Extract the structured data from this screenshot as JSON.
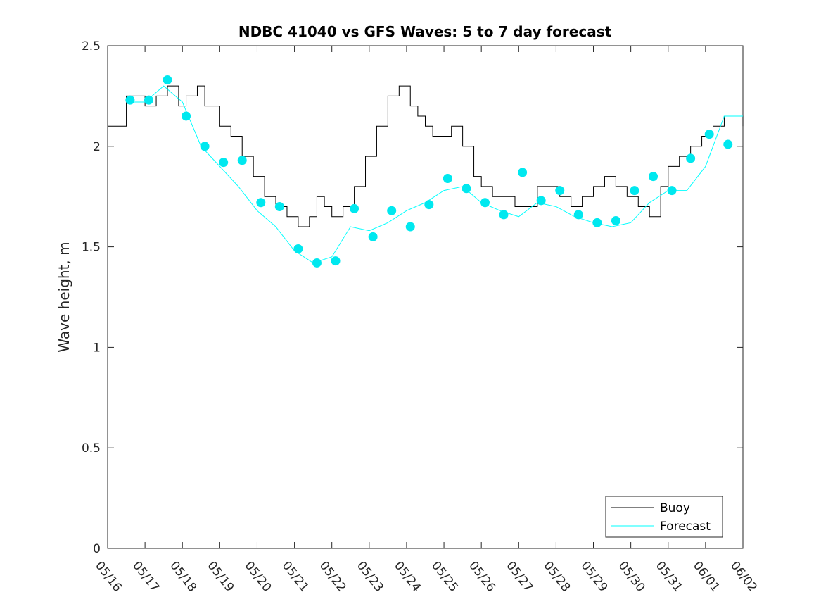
{
  "chart_data": {
    "type": "line",
    "title": "NDBC 41040 vs GFS Waves: 5 to 7 day forecast",
    "xlabel": "",
    "ylabel": "Wave height, m",
    "xlim": [
      "05/16",
      "06/02"
    ],
    "ylim": [
      0,
      2.5
    ],
    "x_ticks": [
      "05/16",
      "05/17",
      "05/18",
      "05/19",
      "05/20",
      "05/21",
      "05/22",
      "05/23",
      "05/24",
      "05/25",
      "05/26",
      "05/27",
      "05/28",
      "05/29",
      "05/30",
      "05/31",
      "06/01",
      "06/02"
    ],
    "y_ticks": [
      "0",
      "0.5",
      "1",
      "1.5",
      "2",
      "2.5"
    ],
    "grid": false,
    "legend": {
      "position": "bottom-right",
      "entries": [
        "Buoy",
        "Forecast"
      ]
    },
    "colors": {
      "buoy": "#000000",
      "forecast": "#00ffff",
      "markers": "#00e8ef"
    },
    "series": [
      {
        "name": "Buoy",
        "x": [
          0.0,
          0.5,
          1.0,
          1.3,
          1.6,
          1.9,
          2.1,
          2.4,
          2.6,
          3.0,
          3.3,
          3.6,
          3.9,
          4.2,
          4.5,
          4.8,
          5.1,
          5.4,
          5.6,
          5.8,
          6.0,
          6.3,
          6.6,
          6.9,
          7.2,
          7.5,
          7.8,
          8.1,
          8.3,
          8.5,
          8.7,
          9.0,
          9.2,
          9.5,
          9.8,
          10.0,
          10.3,
          10.6,
          10.9,
          11.2,
          11.5,
          11.8,
          12.1,
          12.4,
          12.7,
          13.0,
          13.3,
          13.6,
          13.9,
          14.2,
          14.5,
          14.8,
          15.0,
          15.3,
          15.6,
          15.9,
          16.2,
          16.5,
          17.0
        ],
        "values": [
          2.1,
          2.25,
          2.2,
          2.25,
          2.3,
          2.2,
          2.25,
          2.3,
          2.2,
          2.1,
          2.05,
          1.95,
          1.85,
          1.75,
          1.7,
          1.65,
          1.6,
          1.65,
          1.75,
          1.7,
          1.65,
          1.7,
          1.8,
          1.95,
          2.1,
          2.25,
          2.3,
          2.2,
          2.15,
          2.1,
          2.05,
          2.05,
          2.1,
          2.0,
          1.85,
          1.8,
          1.75,
          1.75,
          1.7,
          1.7,
          1.8,
          1.8,
          1.75,
          1.7,
          1.75,
          1.8,
          1.85,
          1.8,
          1.75,
          1.7,
          1.65,
          1.8,
          1.9,
          1.95,
          2.0,
          2.05,
          2.1,
          2.15,
          2.1
        ]
      },
      {
        "name": "Forecast",
        "x": [
          0.5,
          1.0,
          1.5,
          2.0,
          2.5,
          3.0,
          3.5,
          4.0,
          4.5,
          5.0,
          5.5,
          6.0,
          6.5,
          7.0,
          7.5,
          8.0,
          8.5,
          9.0,
          9.5,
          10.0,
          10.5,
          11.0,
          11.5,
          12.0,
          12.5,
          13.0,
          13.5,
          14.0,
          14.5,
          15.0,
          15.5,
          16.0,
          16.5,
          17.0
        ],
        "values": [
          2.22,
          2.22,
          2.3,
          2.22,
          2.0,
          1.9,
          1.8,
          1.68,
          1.6,
          1.48,
          1.42,
          1.45,
          1.6,
          1.58,
          1.62,
          1.68,
          1.72,
          1.78,
          1.8,
          1.72,
          1.68,
          1.65,
          1.72,
          1.7,
          1.65,
          1.62,
          1.6,
          1.62,
          1.72,
          1.78,
          1.78,
          1.9,
          2.15,
          2.15
        ]
      }
    ],
    "markers": {
      "x": [
        0.6,
        1.1,
        1.6,
        2.1,
        2.6,
        3.1,
        3.6,
        4.1,
        4.6,
        5.1,
        5.6,
        6.1,
        6.6,
        7.1,
        7.6,
        8.1,
        8.6,
        9.1,
        9.6,
        10.1,
        10.6,
        11.1,
        11.6,
        12.1,
        12.6,
        13.1,
        13.6,
        14.1,
        14.6,
        15.1,
        15.6,
        16.1,
        16.6
      ],
      "values": [
        2.23,
        2.23,
        2.33,
        2.15,
        2.0,
        1.92,
        1.93,
        1.72,
        1.7,
        1.49,
        1.42,
        1.43,
        1.69,
        1.55,
        1.68,
        1.6,
        1.71,
        1.84,
        1.79,
        1.72,
        1.66,
        1.87,
        1.73,
        1.78,
        1.66,
        1.62,
        1.63,
        1.78,
        1.85,
        1.78,
        1.94,
        2.06,
        2.01
      ]
    }
  }
}
